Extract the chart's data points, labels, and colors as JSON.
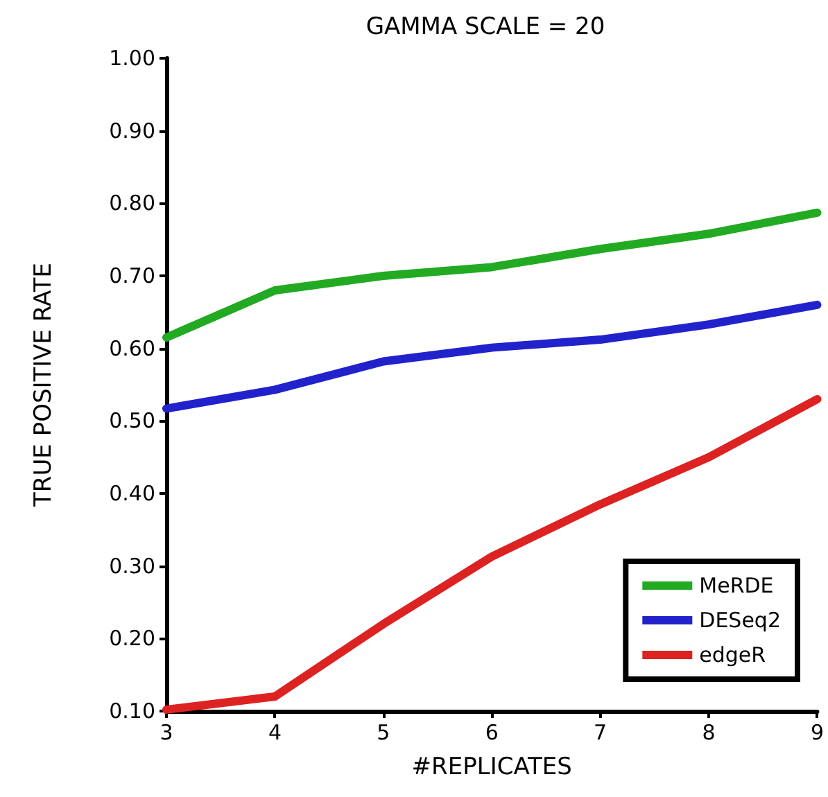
{
  "chart_data": {
    "type": "line",
    "title": "GAMMA SCALE = 20",
    "xlabel": "#REPLICATES",
    "ylabel": "TRUE POSITIVE RATE",
    "x": [
      3,
      4,
      5,
      6,
      7,
      8,
      9
    ],
    "series": [
      {
        "name": "MeRDE",
        "color": "#22aa22",
        "values": [
          0.615,
          0.68,
          0.7,
          0.712,
          0.737,
          0.758,
          0.787
        ]
      },
      {
        "name": "DESeq2",
        "color": "#2222cc",
        "values": [
          0.517,
          0.543,
          0.582,
          0.601,
          0.612,
          0.633,
          0.66
        ]
      },
      {
        "name": "edgeR",
        "color": "#dd2222",
        "values": [
          0.102,
          0.12,
          0.22,
          0.313,
          0.385,
          0.45,
          0.53
        ]
      }
    ],
    "xlim": [
      3,
      9
    ],
    "xticks": [
      3,
      4,
      5,
      6,
      7,
      8,
      9
    ],
    "ylim": [
      0.1,
      1.0
    ],
    "yticks": [
      {
        "value": 0.1,
        "label": "0.10"
      },
      {
        "value": 0.2,
        "label": "0.20"
      },
      {
        "value": 0.3,
        "label": "0.30"
      },
      {
        "value": 0.4,
        "label": "0.40"
      },
      {
        "value": 0.5,
        "label": "0.50"
      },
      {
        "value": 0.6,
        "label": "0.60"
      },
      {
        "value": 0.7,
        "label": "0.70"
      },
      {
        "value": 0.8,
        "label": "0.80"
      },
      {
        "value": 0.9,
        "label": "0.90"
      },
      {
        "value": 1.0,
        "label": "1.00"
      }
    ],
    "grid": false,
    "legend": "bottom right",
    "marker": "none",
    "line_style": "solid"
  }
}
